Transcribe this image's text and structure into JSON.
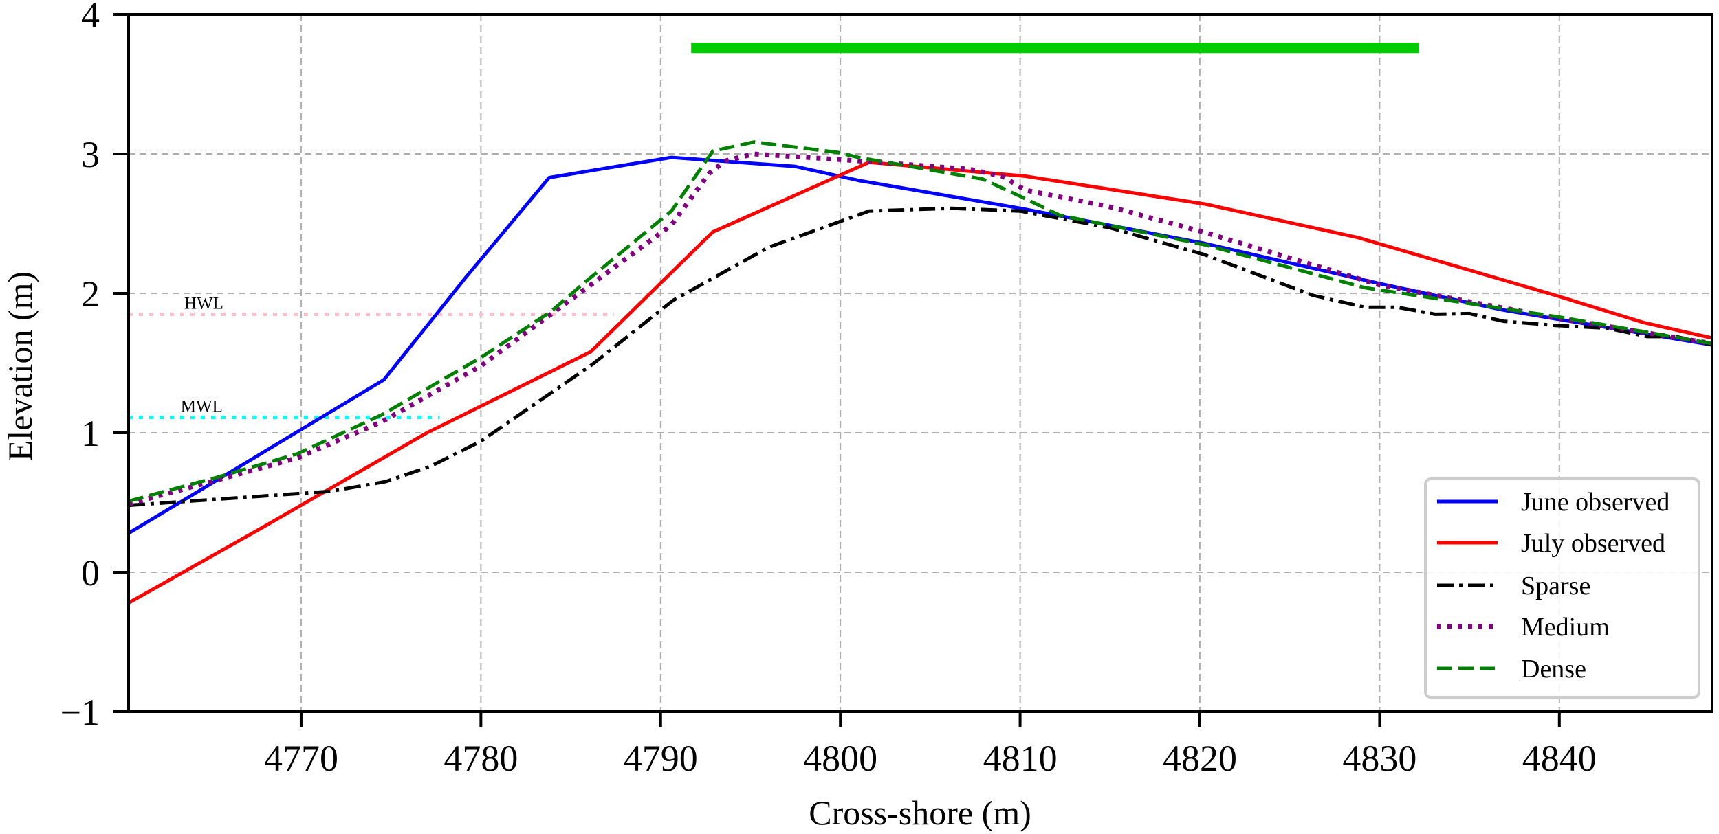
{
  "chart_data": {
    "type": "line",
    "title": "",
    "xlabel": "Cross-shore (m)",
    "ylabel": "Elevation (m)",
    "xlim": [
      4760.4,
      4848.5
    ],
    "ylim": [
      -1,
      4
    ],
    "xticks": [
      4770,
      4780,
      4790,
      4800,
      4810,
      4820,
      4830,
      4840
    ],
    "yticks": [
      -1,
      0,
      1,
      2,
      3,
      4
    ],
    "ytick_labels": [
      "−1",
      "0",
      "1",
      "2",
      "3",
      "4"
    ],
    "grid": true,
    "legend_position": "lower right",
    "series": [
      {
        "name": "June observed",
        "color": "#0000ff",
        "style": "solid",
        "x": [
          4760.4,
          4774.6,
          4779.2,
          4783.8,
          4790.6,
          4797.5,
          4801.0,
          4810.0,
          4820.2,
          4830.0,
          4836.9,
          4848.5
        ],
        "y": [
          0.28,
          1.38,
          2.12,
          2.83,
          2.975,
          2.91,
          2.81,
          2.61,
          2.36,
          2.07,
          1.88,
          1.63
        ]
      },
      {
        "name": "July observed",
        "color": "#ff0000",
        "style": "solid",
        "x": [
          4760.4,
          4767.7,
          4777.0,
          4786.1,
          4792.9,
          4801.6,
          4810.3,
          4820.3,
          4828.8,
          4839.8,
          4844.7,
          4848.5
        ],
        "y": [
          -0.22,
          0.31,
          1.0,
          1.58,
          2.44,
          2.94,
          2.84,
          2.64,
          2.4,
          1.985,
          1.79,
          1.68
        ]
      },
      {
        "name": "Sparse",
        "color": "#000000",
        "style": "dashdot",
        "x": [
          4760.4,
          4771.6,
          4774.7,
          4777.2,
          4780.0,
          4786.2,
          4790.7,
          4796.0,
          4801.6,
          4806.2,
          4810.0,
          4815.0,
          4820.2,
          4826.3,
          4829.2,
          4831.0,
          4833.1,
          4835.0,
          4836.9,
          4839.8,
          4842.7,
          4844.9,
          4846.5,
          4848.5
        ],
        "y": [
          0.48,
          0.58,
          0.65,
          0.76,
          0.94,
          1.49,
          1.95,
          2.33,
          2.59,
          2.61,
          2.59,
          2.47,
          2.28,
          1.985,
          1.9,
          1.9,
          1.85,
          1.855,
          1.8,
          1.77,
          1.75,
          1.69,
          1.69,
          1.63
        ]
      },
      {
        "name": "Medium",
        "color": "#800080",
        "style": "dotted",
        "x": [
          4760.4,
          4765.3,
          4769.8,
          4774.5,
          4780.0,
          4786.0,
          4790.6,
          4792.7,
          4793.6,
          4795.2,
          4801.0,
          4807.2,
          4809.0,
          4810.3,
          4815.0,
          4820.2,
          4830.0,
          4840.0,
          4848.5
        ],
        "y": [
          0.49,
          0.66,
          0.82,
          1.08,
          1.48,
          2.05,
          2.49,
          2.86,
          2.95,
          3.0,
          2.95,
          2.89,
          2.84,
          2.74,
          2.62,
          2.44,
          2.06,
          1.82,
          1.64
        ]
      },
      {
        "name": "Dense",
        "color": "#008000",
        "style": "dashed",
        "x": [
          4760.4,
          4765.3,
          4769.8,
          4774.5,
          4780.0,
          4783.9,
          4785.7,
          4790.6,
          4792.9,
          4795.2,
          4799.9,
          4801.0,
          4807.9,
          4810.1,
          4812.2,
          4820.2,
          4829.2,
          4840.0,
          4848.5
        ],
        "y": [
          0.51,
          0.68,
          0.85,
          1.13,
          1.54,
          1.87,
          2.07,
          2.59,
          3.02,
          3.085,
          3.01,
          2.975,
          2.82,
          2.69,
          2.56,
          2.35,
          2.04,
          1.83,
          1.64
        ]
      }
    ],
    "reference_lines": [
      {
        "label": "HWL",
        "y": 1.85,
        "x_start": 4760.4,
        "x_end": 4787.4,
        "color": "#ffc0cb",
        "style": "dotted",
        "label_x": 4763.5
      },
      {
        "label": "MWL",
        "y": 1.11,
        "x_start": 4760.4,
        "x_end": 4777.7,
        "color": "#00ffff",
        "style": "dotted",
        "label_x": 4763.3
      }
    ],
    "annotations": [
      {
        "type": "horizontal-bar",
        "x_start": 4791.7,
        "x_end": 4832.2,
        "y": 3.76,
        "color": "#00cc00"
      }
    ]
  }
}
